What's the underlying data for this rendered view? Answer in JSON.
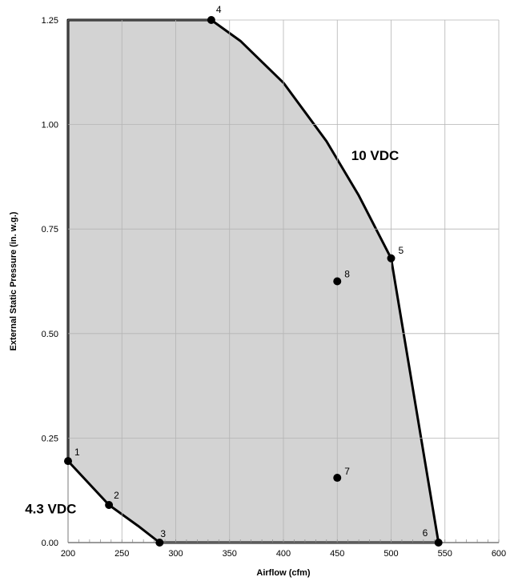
{
  "chart_data": {
    "type": "area",
    "xlabel": "Airflow (cfm)",
    "ylabel": "External Static Pressure (in. w.g.)",
    "xlim": [
      200,
      600
    ],
    "ylim": [
      0,
      1.25
    ],
    "x_ticks": [
      "200",
      "250",
      "300",
      "350",
      "400",
      "450",
      "500",
      "550",
      "600"
    ],
    "y_ticks": [
      "0.00",
      "0.25",
      "0.50",
      "0.75",
      "1.00",
      "1.25"
    ],
    "grid": true,
    "colors": {
      "region_fill": "#d3d3d3",
      "boundary": "#000000",
      "grid": "#b4b4b4"
    },
    "region_boundary": [
      {
        "x": 200,
        "y": 0.195
      },
      {
        "x": 200,
        "y": 1.25
      },
      {
        "x": 333,
        "y": 1.25
      },
      {
        "x": 360,
        "y": 1.2
      },
      {
        "x": 400,
        "y": 1.1
      },
      {
        "x": 440,
        "y": 0.96
      },
      {
        "x": 470,
        "y": 0.83
      },
      {
        "x": 500,
        "y": 0.68
      },
      {
        "x": 544,
        "y": 0.0
      },
      {
        "x": 285,
        "y": 0.0
      },
      {
        "x": 265,
        "y": 0.04
      },
      {
        "x": 238,
        "y": 0.09
      },
      {
        "x": 200,
        "y": 0.195
      }
    ],
    "points": [
      {
        "label": "1",
        "x": 200,
        "y": 0.195
      },
      {
        "label": "2",
        "x": 238,
        "y": 0.09
      },
      {
        "label": "3",
        "x": 285,
        "y": 0.0
      },
      {
        "label": "4",
        "x": 333,
        "y": 1.25
      },
      {
        "label": "5",
        "x": 500,
        "y": 0.68
      },
      {
        "label": "6",
        "x": 544,
        "y": 0.0
      },
      {
        "label": "7",
        "x": 450,
        "y": 0.155
      },
      {
        "label": "8",
        "x": 450,
        "y": 0.625
      }
    ],
    "annotations": [
      {
        "text": "10 VDC",
        "x": 463,
        "y": 0.915
      },
      {
        "text": "4.3 VDC",
        "x": 160,
        "y": 0.07
      }
    ]
  }
}
